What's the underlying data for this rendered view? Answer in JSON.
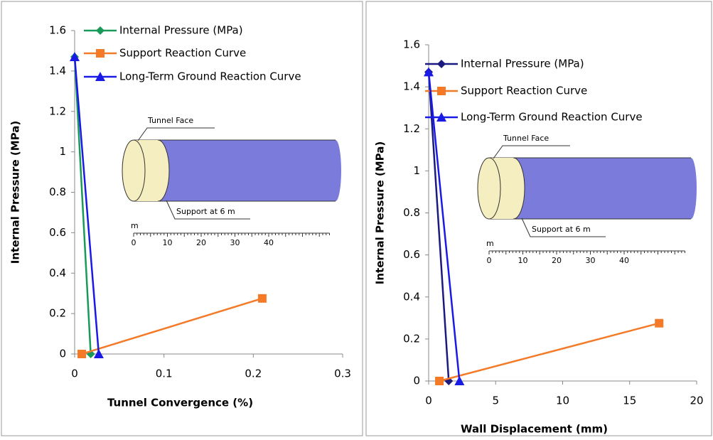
{
  "chart_data": [
    {
      "type": "line",
      "x_label": "Tunnel Convergence (%)",
      "y_label": "Internal Pressure (MPa)",
      "xlim": [
        0,
        0.3
      ],
      "xticks": [
        0,
        0.1,
        0.2,
        0.3
      ],
      "ylim": [
        0,
        1.6
      ],
      "yticks": [
        0,
        0.2,
        0.4,
        0.6,
        0.8,
        1,
        1.2,
        1.4,
        1.6
      ],
      "series": [
        {
          "name": "Internal Pressure (MPa)",
          "color": "#1a9a5a",
          "marker": "diamond",
          "x": [
            0,
            0.018
          ],
          "values": [
            1.47,
            0
          ]
        },
        {
          "name": "Support Reaction Curve",
          "color": "#f57a28",
          "marker": "square",
          "x": [
            0.008,
            0.21
          ],
          "values": [
            0,
            0.275
          ]
        },
        {
          "name": "Long-Term Ground Reaction Curve",
          "color": "#1a1ae6",
          "marker": "triangle",
          "x": [
            0,
            0.027
          ],
          "values": [
            1.47,
            0
          ]
        }
      ],
      "inset": {
        "face_label": "Tunnel Face",
        "support_label": "Support at 6 m",
        "scale_unit": "m",
        "scale_ticks": [
          0,
          10,
          20,
          30,
          40
        ]
      }
    },
    {
      "type": "line",
      "x_label": "Wall Displacement (mm)",
      "y_label": "Internal Pressure (MPa)",
      "xlim": [
        0,
        20
      ],
      "xticks": [
        0,
        5,
        10,
        15,
        20
      ],
      "ylim": [
        0,
        1.6
      ],
      "yticks": [
        0,
        0.2,
        0.4,
        0.6,
        0.8,
        1,
        1.2,
        1.4,
        1.6
      ],
      "series": [
        {
          "name": "Internal Pressure (MPa)",
          "color": "#1a1a80",
          "marker": "diamond",
          "x": [
            0,
            1.5
          ],
          "values": [
            1.47,
            0
          ]
        },
        {
          "name": "Support Reaction Curve",
          "color": "#f57a28",
          "marker": "square",
          "x": [
            0.8,
            17.2
          ],
          "values": [
            0,
            0.275
          ]
        },
        {
          "name": "Long-Term Ground Reaction Curve",
          "color": "#1a1ae6",
          "marker": "triangle",
          "x": [
            0,
            2.3
          ],
          "values": [
            1.47,
            0
          ]
        }
      ],
      "inset": {
        "face_label": "Tunnel Face",
        "support_label": "Support at 6 m",
        "scale_unit": "m",
        "scale_ticks": [
          0,
          10,
          20,
          30,
          40
        ]
      }
    }
  ]
}
